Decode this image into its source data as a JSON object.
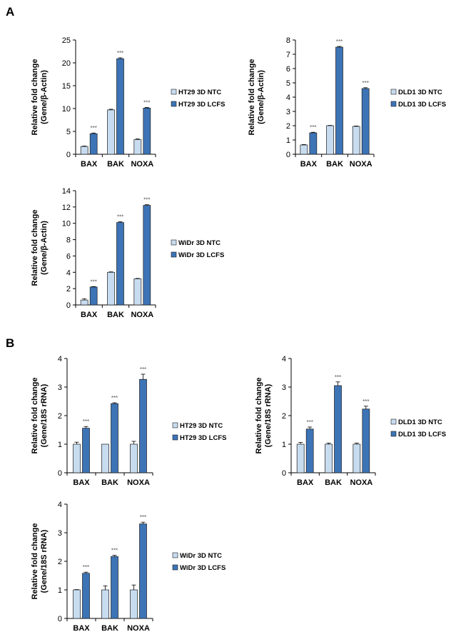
{
  "panels": [
    {
      "label": "A"
    },
    {
      "label": "B"
    }
  ],
  "colors": {
    "ntc": "#c8dcf0",
    "lcfs": "#3d74b6",
    "axis": "#000000",
    "sig": "#555555"
  },
  "chart_data": [
    {
      "type": "bar",
      "categories": [
        "BAX",
        "BAK",
        "NOXA"
      ],
      "series": [
        {
          "name": "HT29 3D NTC",
          "values": [
            1.7,
            9.7,
            3.2
          ],
          "errors": [
            0.1,
            0.15,
            0.15
          ]
        },
        {
          "name": "HT29 3D LCFS",
          "values": [
            4.5,
            20.9,
            10.1
          ],
          "errors": [
            0.15,
            0.2,
            0.15
          ]
        }
      ],
      "significance": [
        "***",
        "***",
        "***"
      ],
      "ylabel": [
        "Relative fold change",
        "(Gene/β-Actin)"
      ],
      "ylim": [
        0,
        25
      ],
      "yticks": [
        0,
        5,
        10,
        15,
        20,
        25
      ]
    },
    {
      "type": "bar",
      "categories": [
        "BAX",
        "BAK",
        "NOXA"
      ],
      "series": [
        {
          "name": "DLD1 3D NTC",
          "values": [
            0.65,
            2.0,
            1.95
          ],
          "errors": [
            0.03,
            0.02,
            0.03
          ]
        },
        {
          "name": "DLD1 3D LCFS",
          "values": [
            1.5,
            7.5,
            4.6
          ],
          "errors": [
            0.04,
            0.05,
            0.06
          ]
        }
      ],
      "significance": [
        "***",
        "***",
        "***"
      ],
      "ylabel": [
        "Relative fold change",
        "(Gene/β-Actin)"
      ],
      "ylim": [
        0,
        8
      ],
      "yticks": [
        0,
        1,
        2,
        3,
        4,
        5,
        6,
        7,
        8
      ]
    },
    {
      "type": "bar",
      "categories": [
        "BAX",
        "BAK",
        "NOXA"
      ],
      "series": [
        {
          "name": "WiDr 3D NTC",
          "values": [
            0.6,
            4.0,
            3.2
          ],
          "errors": [
            0.15,
            0.05,
            0.05
          ]
        },
        {
          "name": "WiDr 3D LCFS",
          "values": [
            2.2,
            10.1,
            12.2
          ],
          "errors": [
            0.05,
            0.08,
            0.08
          ]
        }
      ],
      "significance": [
        "***",
        "***",
        "***"
      ],
      "ylabel": [
        "Relative fold change",
        "(Gene/β-Actin)"
      ],
      "ylim": [
        0,
        14
      ],
      "yticks": [
        0,
        2,
        4,
        6,
        8,
        10,
        12,
        14
      ]
    },
    {
      "type": "bar",
      "categories": [
        "BAX",
        "BAK",
        "NOXA"
      ],
      "series": [
        {
          "name": "HT29 3D NTC",
          "values": [
            1.0,
            1.0,
            1.0
          ],
          "errors": [
            0.07,
            0.0,
            0.1
          ]
        },
        {
          "name": "HT29 3D LCFS",
          "values": [
            1.56,
            2.42,
            3.27
          ],
          "errors": [
            0.06,
            0.03,
            0.18
          ]
        }
      ],
      "significance": [
        "***",
        "***",
        "***"
      ],
      "ylabel": [
        "Relative fold change",
        "(Gene/18S rRNA)"
      ],
      "ylim": [
        0,
        4
      ],
      "yticks": [
        0,
        1,
        2,
        3,
        4
      ]
    },
    {
      "type": "bar",
      "categories": [
        "BAX",
        "BAK",
        "NOXA"
      ],
      "series": [
        {
          "name": "DLD1 3D NTC",
          "values": [
            1.0,
            1.0,
            1.0
          ],
          "errors": [
            0.06,
            0.04,
            0.04
          ]
        },
        {
          "name": "DLD1 3D LCFS",
          "values": [
            1.53,
            3.05,
            2.23
          ],
          "errors": [
            0.07,
            0.13,
            0.1
          ]
        }
      ],
      "significance": [
        "***",
        "***",
        "***"
      ],
      "ylabel": [
        "Relative fold change",
        "(Gene/18S rRNA)"
      ],
      "ylim": [
        0,
        4
      ],
      "yticks": [
        0,
        1,
        2,
        3,
        4
      ]
    },
    {
      "type": "bar",
      "categories": [
        "BAX",
        "BAK",
        "NOXA"
      ],
      "series": [
        {
          "name": "WiDr 3D NTC",
          "values": [
            1.0,
            1.0,
            1.0
          ],
          "errors": [
            0.01,
            0.14,
            0.17
          ]
        },
        {
          "name": "WiDr 3D LCFS",
          "values": [
            1.58,
            2.17,
            3.31
          ],
          "errors": [
            0.04,
            0.04,
            0.06
          ]
        }
      ],
      "significance": [
        "***",
        "***",
        "***"
      ],
      "ylabel": [
        "Relative fold change",
        "(Gene/18S rRNA)"
      ],
      "ylim": [
        0,
        4
      ],
      "yticks": [
        0,
        1,
        2,
        3,
        4
      ]
    }
  ]
}
